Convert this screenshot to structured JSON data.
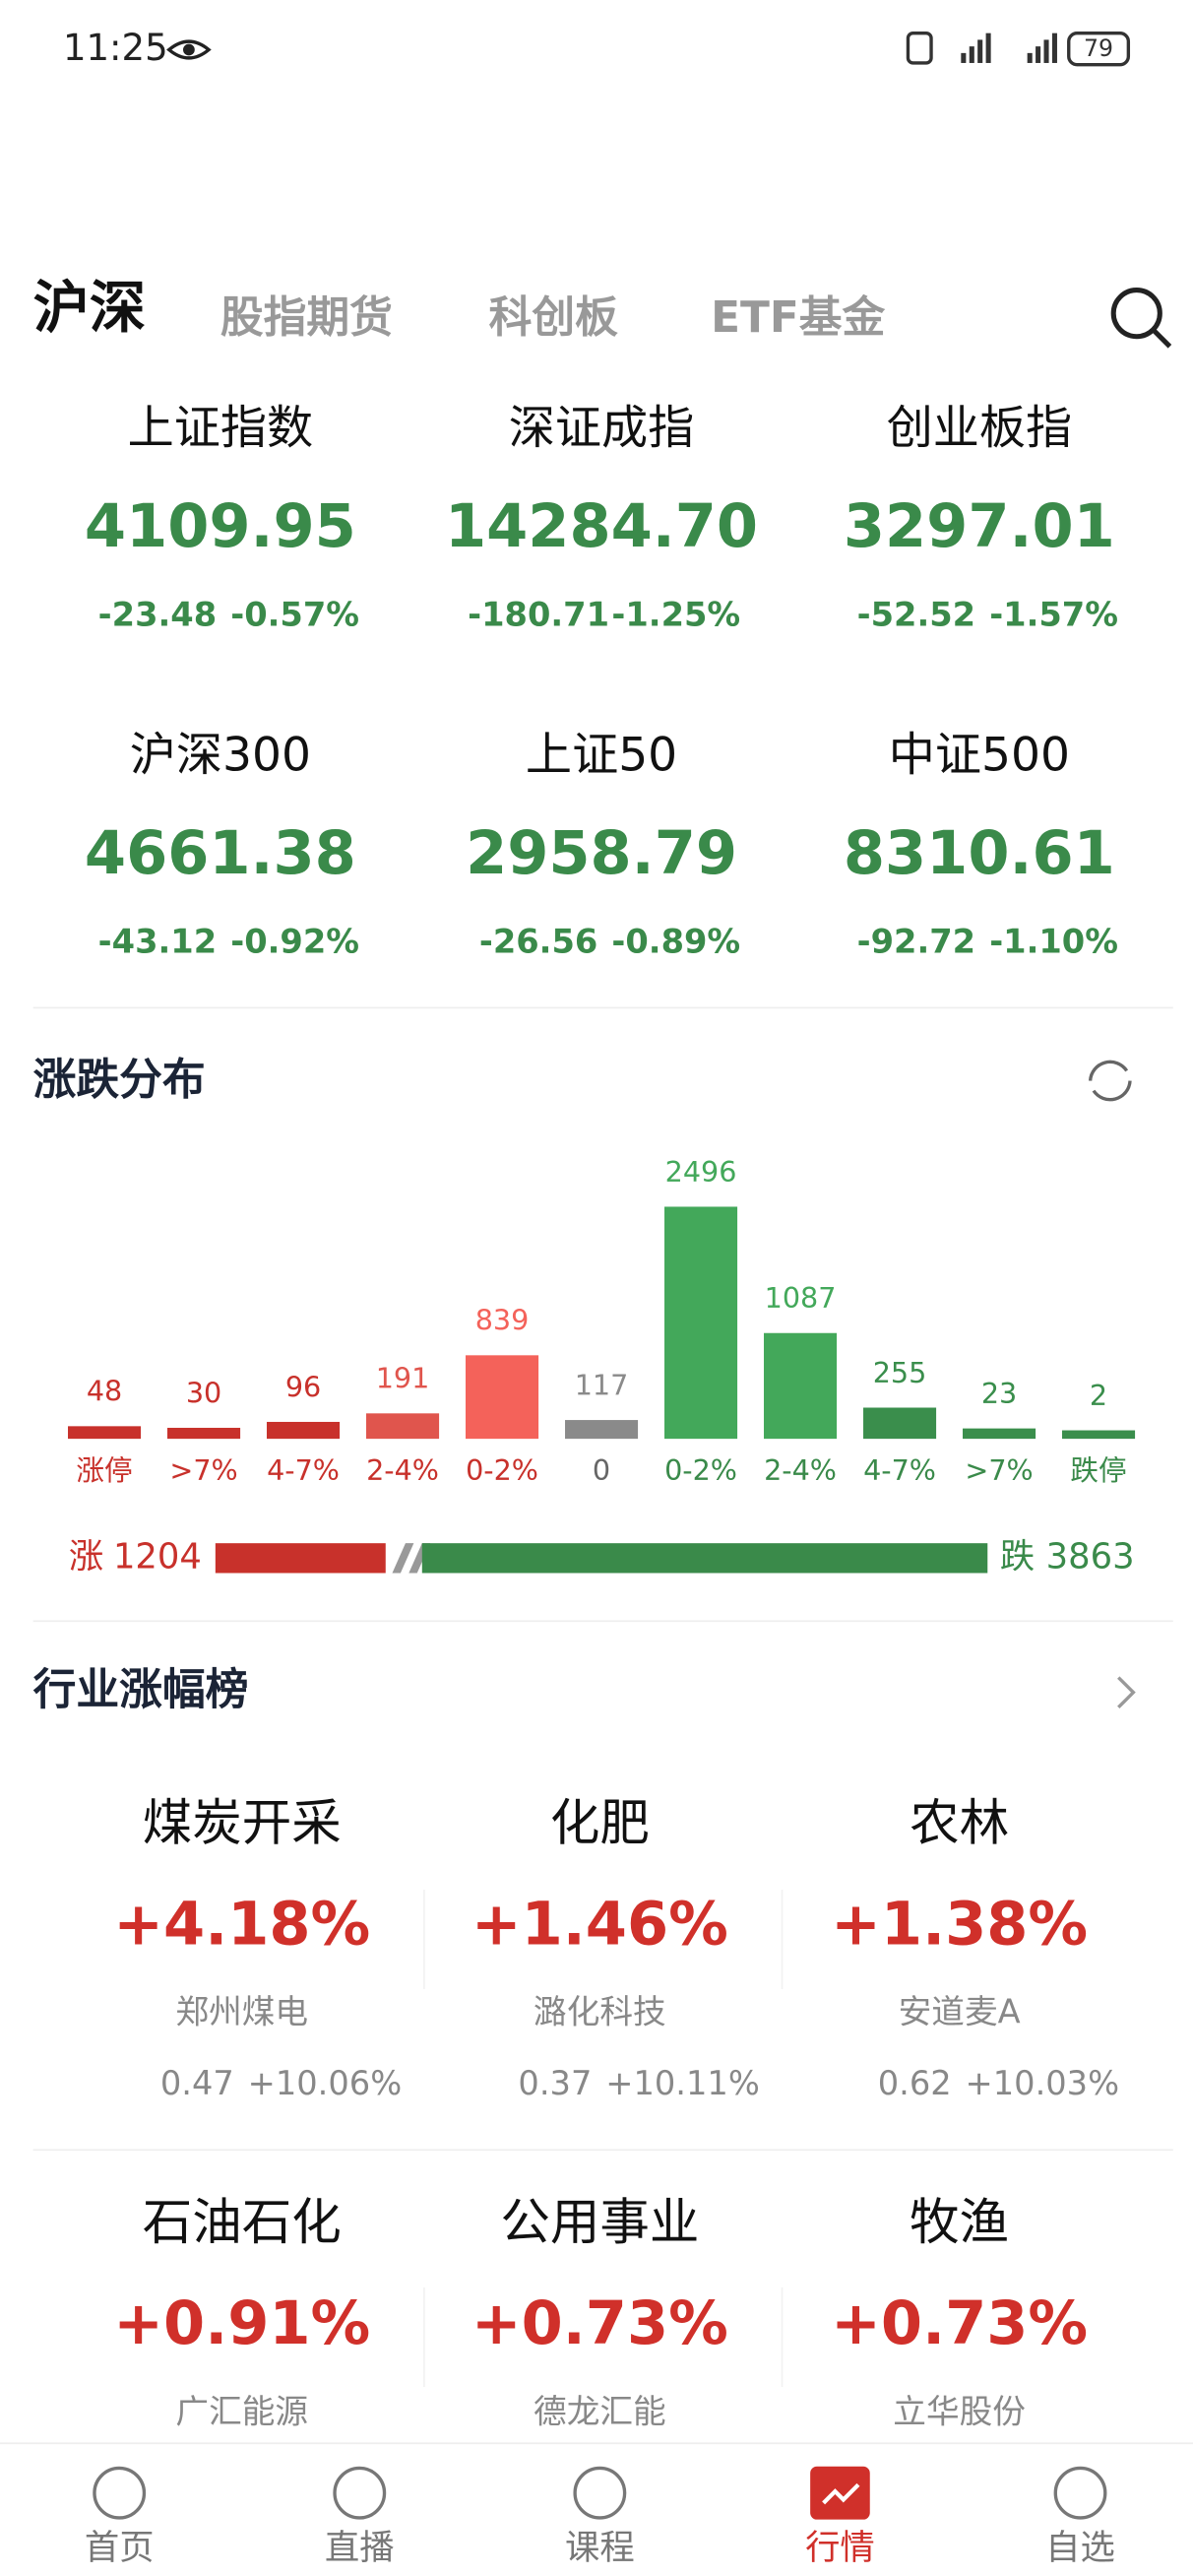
{
  "status": {
    "time": "11:25",
    "battery": "79"
  },
  "tabs": [
    "沪深",
    "股指期货",
    "科创板",
    "ETF基金"
  ],
  "indices": [
    {
      "name": "上证指数",
      "value": "4109.95",
      "change": "-23.48",
      "pct": "-0.57%"
    },
    {
      "name": "深证成指",
      "value": "14284.70",
      "change": "-180.71",
      "pct": "-1.25%"
    },
    {
      "name": "创业板指",
      "value": "3297.01",
      "change": "-52.52",
      "pct": "-1.57%"
    },
    {
      "name": "沪深300",
      "value": "4661.38",
      "change": "-43.12",
      "pct": "-0.92%"
    },
    {
      "name": "上证50",
      "value": "2958.79",
      "change": "-26.56",
      "pct": "-0.89%"
    },
    {
      "name": "中证500",
      "value": "8310.61",
      "change": "-92.72",
      "pct": "-1.10%"
    }
  ],
  "distribution": {
    "title": "涨跌分布",
    "categories": [
      "涨停",
      ">7%",
      "4-7%",
      "2-4%",
      "0-2%",
      "0",
      "0-2%",
      "2-4%",
      "4-7%",
      ">7%",
      "跌停"
    ],
    "values": [
      48,
      30,
      96,
      191,
      839,
      117,
      2496,
      1087,
      255,
      23,
      2
    ],
    "colors": [
      "#c8312b",
      "#c8312b",
      "#c8312b",
      "#e0554d",
      "#f4625a",
      "#8a8a8a",
      "#43a85a",
      "#43a85a",
      "#3a8e4c",
      "#3a8e4c",
      "#3a8e4c"
    ],
    "up_label": "涨",
    "up": 1204,
    "down_label": "跌",
    "down": 3863
  },
  "industries": {
    "title": "行业涨幅榜",
    "items": [
      {
        "name": "煤炭开采",
        "pct": "+4.18%",
        "stock": "郑州煤电",
        "price": "0.47",
        "stock_pct": "+10.06%"
      },
      {
        "name": "化肥",
        "pct": "+1.46%",
        "stock": "潞化科技",
        "price": "0.37",
        "stock_pct": "+10.11%"
      },
      {
        "name": "农林",
        "pct": "+1.38%",
        "stock": "安道麦A",
        "price": "0.62",
        "stock_pct": "+10.03%"
      },
      {
        "name": "石油石化",
        "pct": "+0.91%",
        "stock": "广汇能源"
      },
      {
        "name": "公用事业",
        "pct": "+0.73%",
        "stock": "德龙汇能"
      },
      {
        "name": "牧渔",
        "pct": "+0.73%",
        "stock": "立华股份"
      }
    ]
  },
  "nav": {
    "items": [
      "首页",
      "直播",
      "课程",
      "行情",
      "自选"
    ],
    "active": 3
  }
}
